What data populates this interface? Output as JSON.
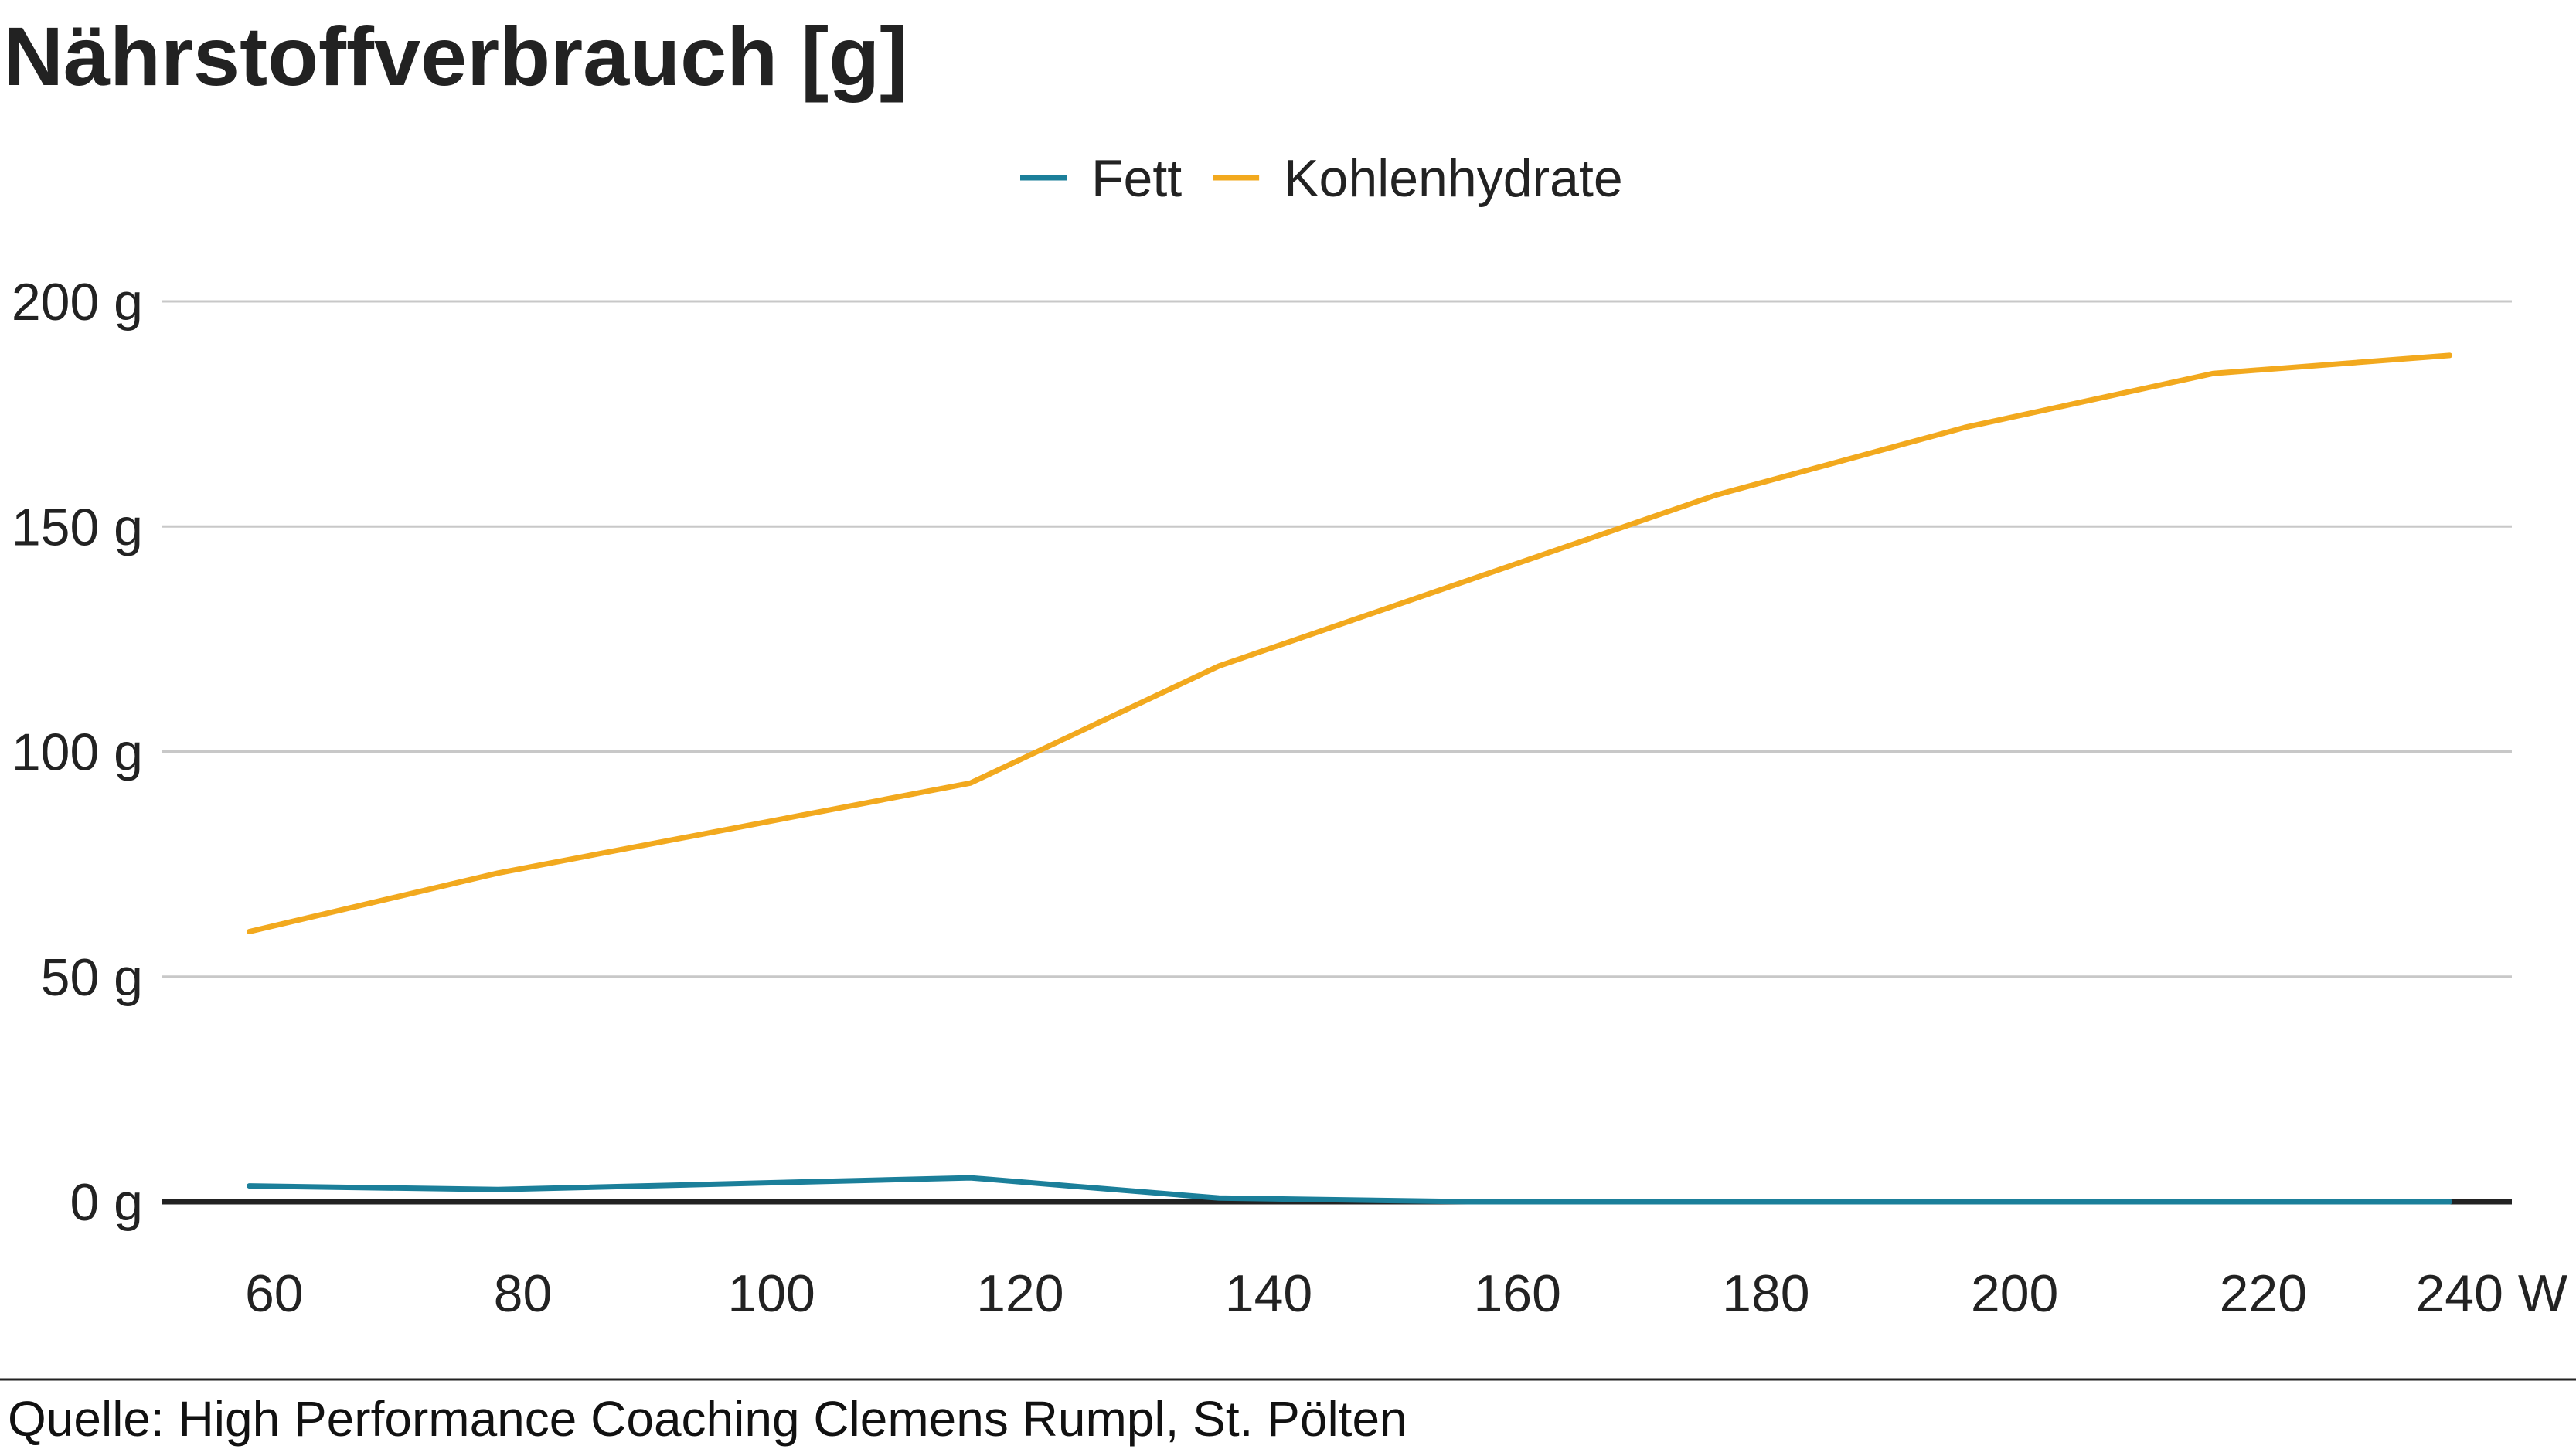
{
  "chart_data": {
    "type": "line",
    "title": "Nährstoffverbrauch [g]",
    "xlabel": "",
    "ylabel": "",
    "x": [
      58,
      78,
      116,
      136,
      156,
      176,
      196,
      216,
      235
    ],
    "xlim": [
      51,
      240
    ],
    "ylim": [
      0,
      200
    ],
    "x_ticks": [
      60,
      80,
      100,
      120,
      140,
      160,
      180,
      200,
      220,
      240
    ],
    "x_tick_labels": [
      "60",
      "80",
      "100",
      "120",
      "140",
      "160",
      "180",
      "200",
      "220",
      "240 W"
    ],
    "y_ticks": [
      0,
      50,
      100,
      150,
      200
    ],
    "y_tick_labels": [
      "0 g",
      "50 g",
      "100 g",
      "150 g",
      "200 g"
    ],
    "grid": true,
    "legend_position": "top-center",
    "series": [
      {
        "name": "Fett",
        "color": "#1b7f9a",
        "values": [
          3.5,
          2.7,
          5.3,
          0.8,
          0,
          0,
          0,
          0,
          0
        ]
      },
      {
        "name": "Kohlenhydrate",
        "color": "#f2a91e",
        "values": [
          60,
          73,
          93,
          119,
          138,
          157,
          172,
          184,
          188
        ]
      }
    ],
    "source": "Quelle: High Performance Coaching Clemens Rumpl, St. Pölten"
  }
}
